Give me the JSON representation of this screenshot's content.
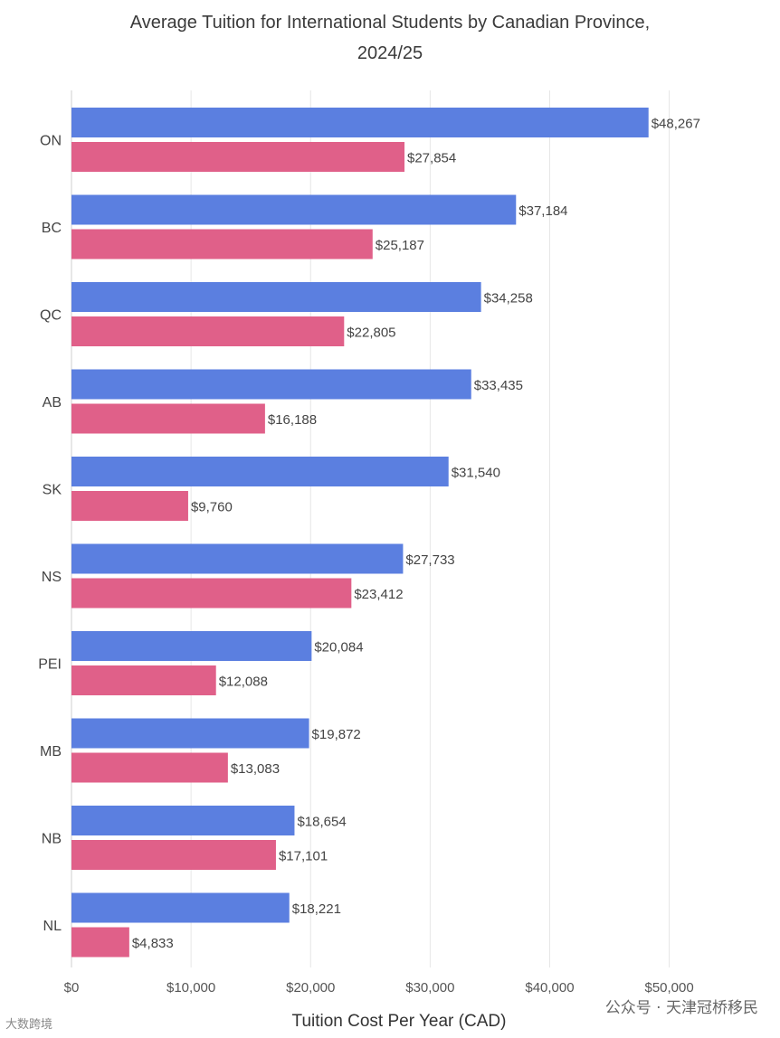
{
  "chart_data": {
    "type": "bar",
    "orientation": "horizontal",
    "title": "Average Tuition for International Students by Canadian Province,",
    "subtitle": "2024/25",
    "xlabel": "Tuition Cost Per Year (CAD)",
    "ylabel": "",
    "xlim": [
      0,
      53000
    ],
    "xticks": [
      0,
      10000,
      20000,
      30000,
      40000,
      50000
    ],
    "xtick_labels": [
      "$0",
      "$10,000",
      "$20,000",
      "$30,000",
      "$40,000",
      "$50,000"
    ],
    "grid": "vertical",
    "categories": [
      "ON",
      "BC",
      "QC",
      "AB",
      "SK",
      "NS",
      "PEI",
      "MB",
      "NB",
      "NL"
    ],
    "series": [
      {
        "values": [
          48267,
          37184,
          34258,
          33435,
          31540,
          27733,
          20084,
          19872,
          18654,
          18221
        ],
        "labels": [
          "$48,267",
          "$37,184",
          "$34,258",
          "$33,435",
          "$31,540",
          "$27,733",
          "$20,084",
          "$19,872",
          "$18,654",
          "$18,221"
        ],
        "color": "#5b7fe0"
      },
      {
        "values": [
          27854,
          25187,
          22805,
          16188,
          9760,
          23412,
          12088,
          13083,
          17101,
          4833
        ],
        "labels": [
          "$27,854",
          "$25,187",
          "$22,805",
          "$16,188",
          "$9,760",
          "$23,412",
          "$12,088",
          "$13,083",
          "$17,101",
          "$4,833"
        ],
        "color": "#e06089"
      }
    ]
  },
  "watermark": {
    "left": "大数跨境",
    "right": "公众号 · 天津冠桥移民"
  }
}
